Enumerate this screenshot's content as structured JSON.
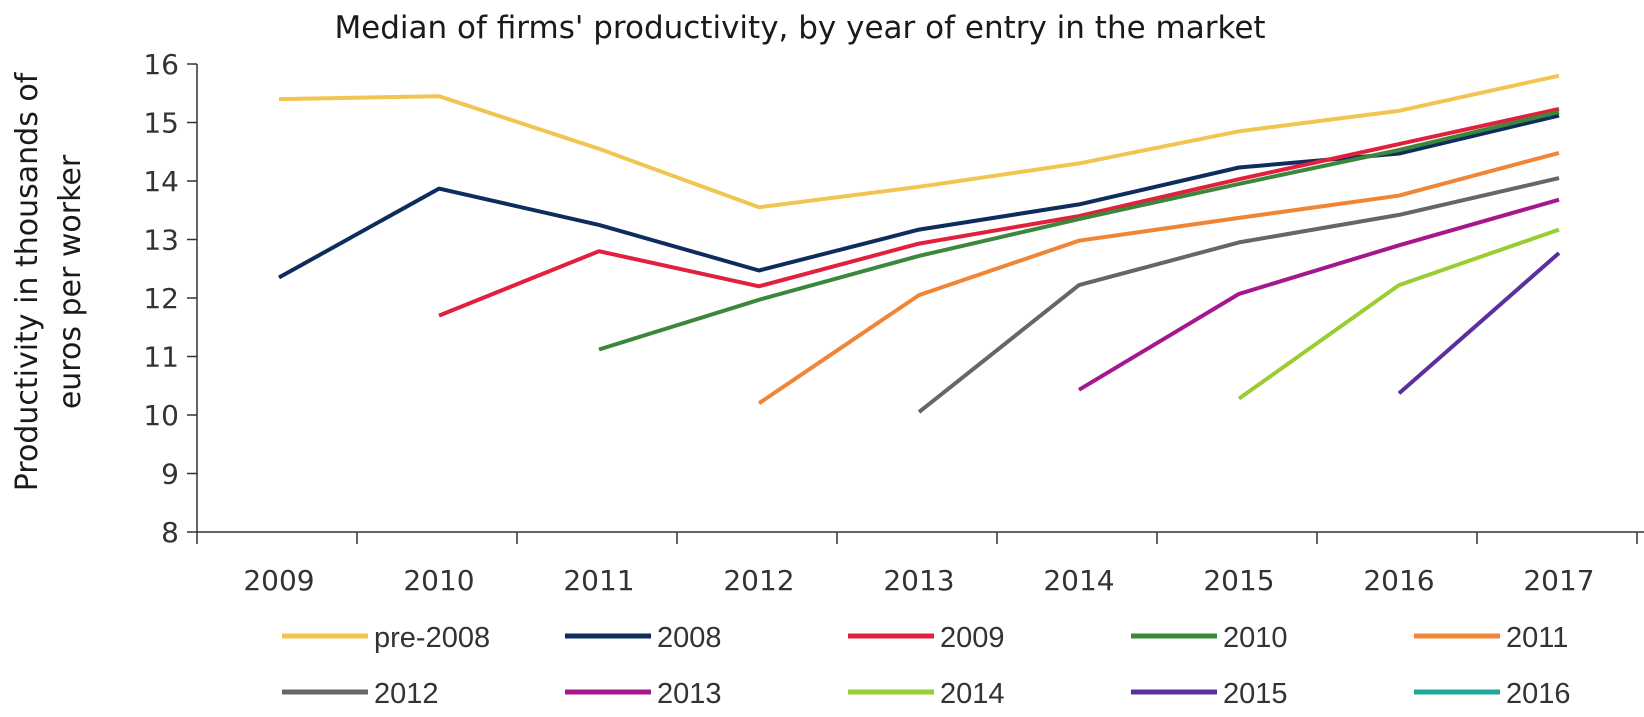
{
  "chart_data": {
    "type": "line",
    "title": "Median of firms' productivity, by year of entry in the market",
    "ylabel": "Productivity in thousands of euros per worker",
    "ylabel_lines": [
      "Productivity in thousands of",
      "euros per worker"
    ],
    "xlabel": "",
    "ylim": [
      8,
      16
    ],
    "yticks": [
      8,
      9,
      10,
      11,
      12,
      13,
      14,
      15,
      16
    ],
    "categories": [
      "2009",
      "2010",
      "2011",
      "2012",
      "2013",
      "2014",
      "2015",
      "2016",
      "2017"
    ],
    "series": [
      {
        "name": "pre-2008",
        "color": "#F0C552",
        "values": [
          15.4,
          15.45,
          14.55,
          13.55,
          13.9,
          14.3,
          14.85,
          15.2,
          15.8
        ]
      },
      {
        "name": "2008",
        "color": "#0D2D5C",
        "values": [
          12.35,
          13.87,
          13.25,
          12.47,
          13.17,
          13.6,
          14.23,
          14.47,
          15.12
        ]
      },
      {
        "name": "2009",
        "color": "#E2203E",
        "values": [
          null,
          11.7,
          12.8,
          12.2,
          12.93,
          13.4,
          14.03,
          14.63,
          15.23
        ]
      },
      {
        "name": "2010",
        "color": "#3C873C",
        "values": [
          null,
          null,
          11.12,
          11.97,
          12.72,
          13.35,
          13.95,
          14.53,
          15.18
        ]
      },
      {
        "name": "2011",
        "color": "#F08535",
        "values": [
          null,
          null,
          null,
          10.2,
          12.05,
          12.98,
          13.37,
          13.75,
          14.48
        ]
      },
      {
        "name": "2012",
        "color": "#666666",
        "values": [
          null,
          null,
          null,
          null,
          10.05,
          12.22,
          12.95,
          13.42,
          14.05
        ]
      },
      {
        "name": "2013",
        "color": "#A5178C",
        "values": [
          null,
          null,
          null,
          null,
          null,
          10.43,
          12.07,
          12.9,
          13.68
        ]
      },
      {
        "name": "2014",
        "color": "#9ACD32",
        "values": [
          null,
          null,
          null,
          null,
          null,
          null,
          10.28,
          12.22,
          13.17
        ]
      },
      {
        "name": "2015",
        "color": "#5A2FA0",
        "values": [
          null,
          null,
          null,
          null,
          null,
          null,
          null,
          10.37,
          12.77
        ]
      },
      {
        "name": "2016",
        "color": "#1FA89A",
        "values": [
          null,
          null,
          null,
          null,
          null,
          null,
          null,
          null,
          null
        ]
      }
    ],
    "legend_position": "bottom",
    "grid": false
  }
}
